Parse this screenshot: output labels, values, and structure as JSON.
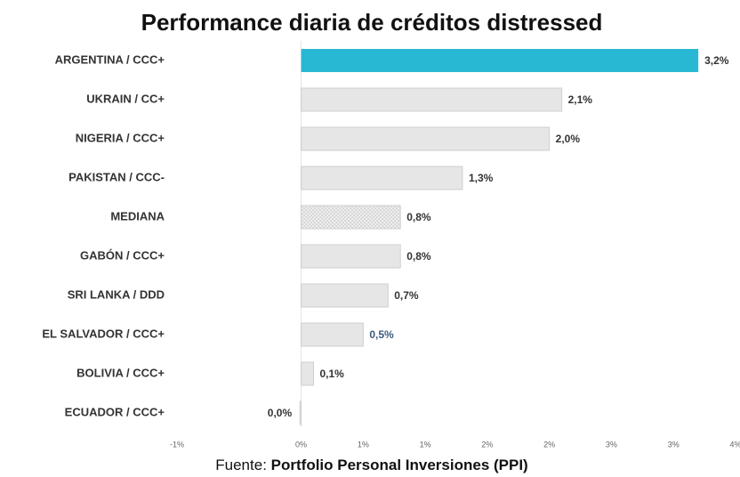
{
  "chart_data": {
    "type": "hbar",
    "title": "Performance diaria de créditos distressed",
    "categories": [
      "ARGENTINA / CCC+",
      "UKRAIN / CC+",
      "NIGERIA / CCC+",
      "PAKISTAN / CCC-",
      "MEDIANA",
      "GABÓN / CCC+",
      "SRI LANKA / DDD",
      "EL SALVADOR / CCC+",
      "BOLIVIA / CCC+",
      "ECUADOR / CCC+"
    ],
    "values": [
      3.2,
      2.1,
      2.0,
      1.3,
      0.8,
      0.8,
      0.7,
      0.5,
      0.1,
      -0.01
    ],
    "value_labels": [
      "3,2%",
      "2,1%",
      "2,0%",
      "1,3%",
      "0,8%",
      "0,8%",
      "0,7%",
      "0,5%",
      "0,1%",
      "0,0%"
    ],
    "colors": [
      "#29b8d4",
      "#e6e6e6",
      "#e6e6e6",
      "#e6e6e6",
      "#e6e6e6",
      "#e6e6e6",
      "#e6e6e6",
      "#e6e6e6",
      "#e6e6e6",
      "#e6e6e6"
    ],
    "hatched": [
      false,
      false,
      false,
      false,
      true,
      false,
      false,
      false,
      false,
      false
    ],
    "value_label_colors": [
      "#333333",
      "#333333",
      "#333333",
      "#333333",
      "#333333",
      "#333333",
      "#333333",
      "#3d5a80",
      "#333333",
      "#333333"
    ],
    "xlim": [
      -1,
      3.5
    ],
    "xticks": [
      {
        "value": -1,
        "label": "-1%"
      },
      {
        "value": 0,
        "label": "0%"
      },
      {
        "value": 0.5,
        "label": "1%"
      },
      {
        "value": 1,
        "label": "1%"
      },
      {
        "value": 1.5,
        "label": "2%"
      },
      {
        "value": 2,
        "label": "2%"
      },
      {
        "value": 2.5,
        "label": "3%"
      },
      {
        "value": 3,
        "label": "3%"
      },
      {
        "value": 3.5,
        "label": "4%"
      }
    ],
    "source_label": "Fuente:",
    "source": "Portfolio Personal Inversiones (PPI)"
  }
}
